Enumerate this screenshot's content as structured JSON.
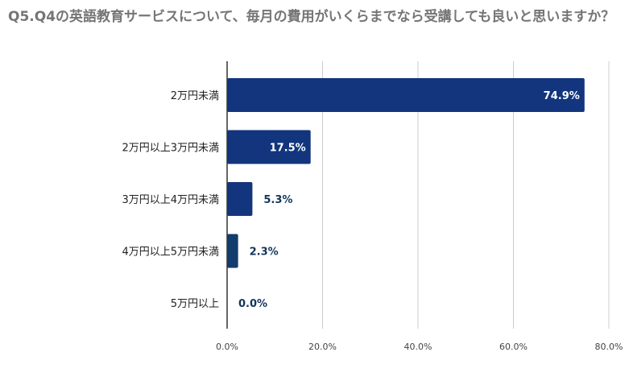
{
  "chart_data": {
    "type": "bar",
    "orientation": "horizontal",
    "title": "Q5.Q4の英語教育サービスについて、毎月の費用がいくらまでなら受講しても良いと思いますか？",
    "categories": [
      "2万円未満",
      "2万円以上3万円未満",
      "3万円以上4万円未満",
      "4万円以上5万円未満",
      "5万円以上"
    ],
    "values": [
      74.9,
      17.5,
      5.3,
      2.3,
      0.0
    ],
    "value_labels": [
      "74.9%",
      "17.5%",
      "5.3%",
      "2.3%",
      "0.0%"
    ],
    "xlim": [
      0,
      80
    ],
    "x_ticks": [
      0,
      20,
      40,
      60,
      80
    ],
    "x_tick_labels": [
      "0.0%",
      "20.0%",
      "40.0%",
      "60.0%",
      "80.0%"
    ],
    "grid": true,
    "legend": "none",
    "bar_colors": [
      "#12357d",
      "#12357d",
      "#12357d",
      "#123c6b",
      "#123c6b"
    ],
    "label_inside_color": "#ffffff",
    "label_outside_color": "#12355a",
    "grid_color": "#cccccc",
    "title_color": "#757575"
  }
}
